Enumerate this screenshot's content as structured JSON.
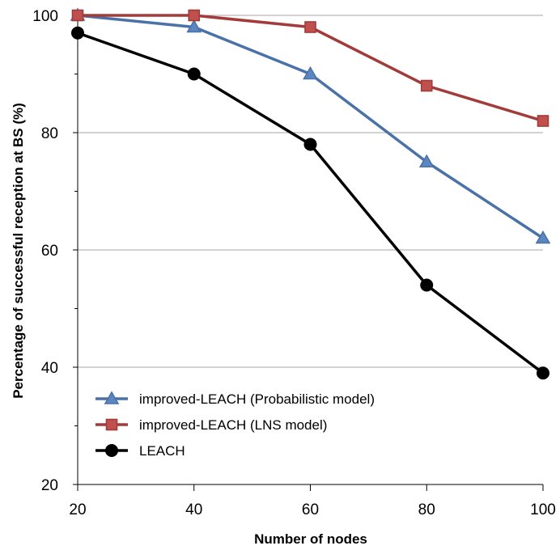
{
  "chart_data": {
    "type": "line",
    "title": "",
    "xlabel": "Number of nodes",
    "ylabel": "Percentage of successful reception at BS  (%)",
    "x": [
      20,
      40,
      60,
      80,
      100
    ],
    "xlim": [
      20,
      100
    ],
    "ylim": [
      20,
      100
    ],
    "xticks": [
      "20",
      "40",
      "60",
      "80",
      "100"
    ],
    "yticks": [
      "20",
      "40",
      "60",
      "80",
      "100"
    ],
    "grid": "horizontal major lines",
    "legend_position": "lower-left",
    "series": [
      {
        "name": "improved-LEACH (Probabilistic model)",
        "values": [
          100,
          98,
          90,
          75,
          62
        ],
        "color": "#4a72a8",
        "marker": "triangle"
      },
      {
        "name": "improved-LEACH (LNS model)",
        "values": [
          100,
          100,
          98,
          88,
          82
        ],
        "color": "#a23b39",
        "marker": "square"
      },
      {
        "name": "LEACH",
        "values": [
          97,
          90,
          78,
          54,
          39
        ],
        "color": "#000000",
        "marker": "circle"
      }
    ]
  }
}
